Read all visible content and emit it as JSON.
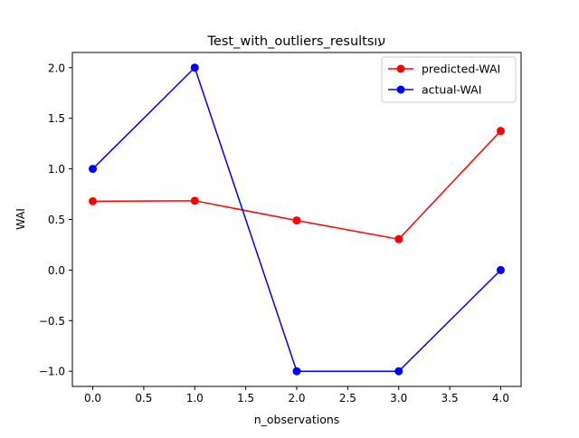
{
  "chart_data": {
    "type": "line",
    "title": "Test_with_outliers_resultsעו",
    "xlabel": "n_observations",
    "ylabel": "WAI",
    "x": [
      0.0,
      1.0,
      2.0,
      3.0,
      4.0
    ],
    "xlim": [
      -0.2,
      4.2
    ],
    "ylim": [
      -1.15,
      2.15
    ],
    "xticks": [
      0.0,
      0.5,
      1.0,
      1.5,
      2.0,
      2.5,
      3.0,
      3.5,
      4.0
    ],
    "xtick_labels": [
      "0.0",
      "0.5",
      "1.0",
      "1.5",
      "2.0",
      "2.5",
      "3.0",
      "3.5",
      "4.0"
    ],
    "yticks": [
      -1.0,
      -0.5,
      0.0,
      0.5,
      1.0,
      1.5,
      2.0
    ],
    "ytick_labels": [
      "−1.0",
      "−0.5",
      "0.0",
      "0.5",
      "1.0",
      "1.5",
      "2.0"
    ],
    "grid": false,
    "legend_position": "top-right",
    "series": [
      {
        "name": "predicted-WAI",
        "color": "#ff0000",
        "marker": "circle",
        "values": [
          0.68,
          0.685,
          0.49,
          0.305,
          1.375
        ]
      },
      {
        "name": "actual-WAI",
        "color": "#0000ff",
        "marker": "circle",
        "values": [
          1.0,
          2.0,
          -1.0,
          -1.0,
          0.0
        ]
      }
    ]
  }
}
